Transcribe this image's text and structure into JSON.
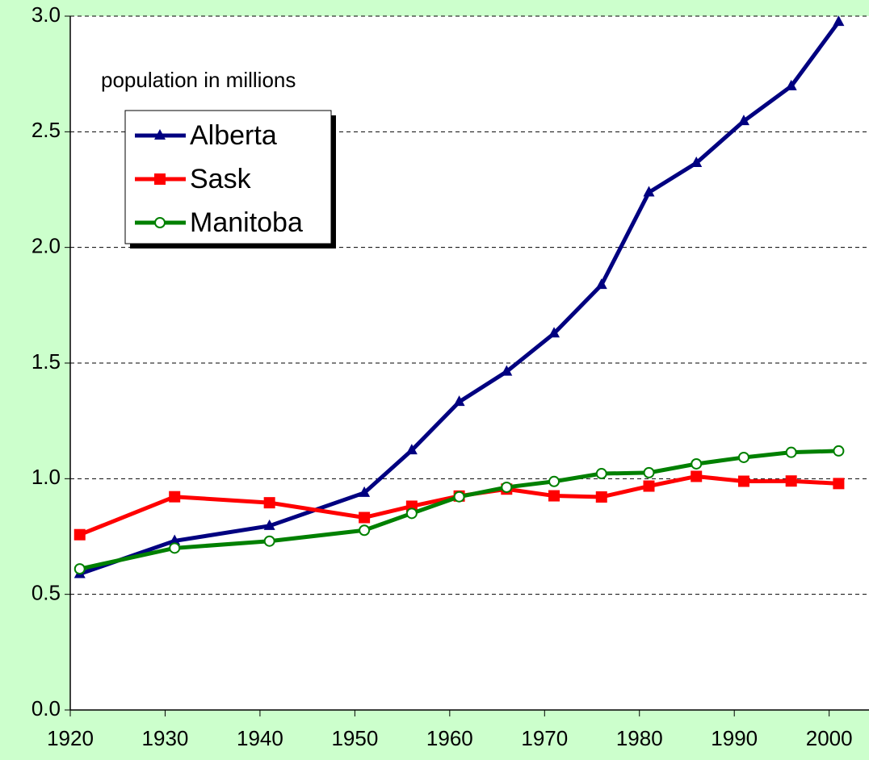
{
  "chart_data": {
    "type": "line",
    "annotation": "population in millions",
    "x": [
      1921,
      1931,
      1941,
      1951,
      1956,
      1961,
      1966,
      1971,
      1976,
      1981,
      1986,
      1991,
      1996,
      2001
    ],
    "series": [
      {
        "name": "Alberta",
        "color": "#000080",
        "marker": "triangle",
        "values": [
          0.588,
          0.731,
          0.796,
          0.939,
          1.123,
          1.332,
          1.463,
          1.628,
          1.838,
          2.238,
          2.365,
          2.546,
          2.697,
          2.975
        ]
      },
      {
        "name": "Sask",
        "color": "#ff0000",
        "marker": "square",
        "values": [
          0.758,
          0.922,
          0.896,
          0.832,
          0.881,
          0.925,
          0.955,
          0.926,
          0.921,
          0.968,
          1.01,
          0.989,
          0.99,
          0.979
        ]
      },
      {
        "name": "Manitoba",
        "color": "#008000",
        "marker": "circle",
        "values": [
          0.61,
          0.7,
          0.73,
          0.777,
          0.85,
          0.922,
          0.963,
          0.988,
          1.022,
          1.026,
          1.064,
          1.092,
          1.114,
          1.12
        ]
      }
    ],
    "xlim": [
      1920,
      2004.2
    ],
    "xticks": [
      1920,
      1930,
      1940,
      1950,
      1960,
      1970,
      1980,
      1990,
      2000
    ],
    "ylim": [
      0,
      3
    ],
    "yticks": [
      {
        "value": 0,
        "label": "0.0"
      },
      0.5,
      {
        "value": 1,
        "label": "1.0"
      },
      1.5,
      {
        "value": 2,
        "label": "2.0"
      },
      2.5,
      {
        "value": 3,
        "label": "3.0"
      }
    ],
    "grid": true,
    "legend": "upper left"
  }
}
